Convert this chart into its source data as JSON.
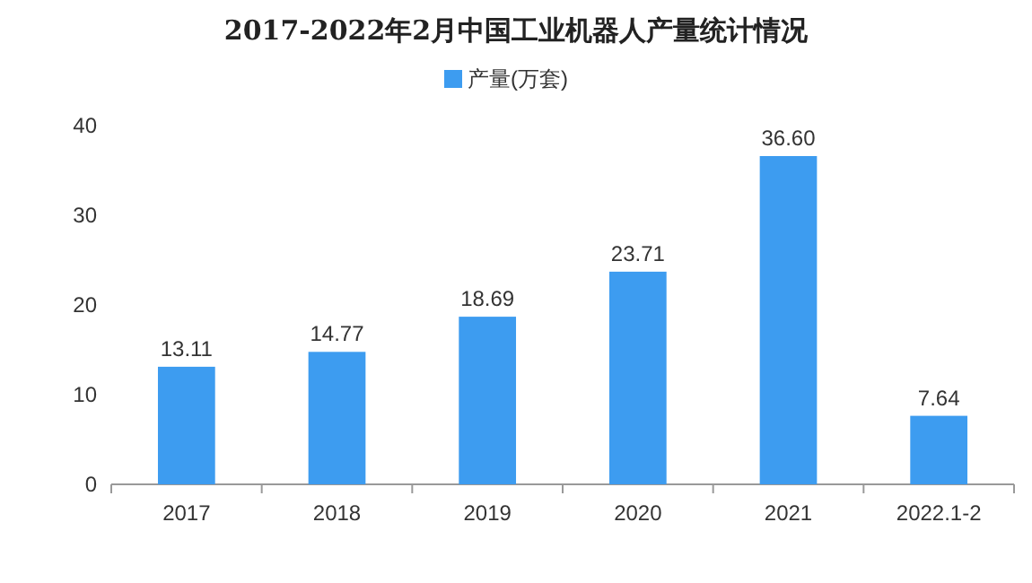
{
  "chart_data": {
    "type": "bar",
    "title": "2017-2022年2月中国工业机器人产量统计情况",
    "categories": [
      "2017",
      "2018",
      "2019",
      "2020",
      "2021",
      "2022.1-2"
    ],
    "series": [
      {
        "name": "产量(万套)",
        "color": "#3d9cf0",
        "values": [
          13.11,
          14.77,
          18.69,
          23.71,
          36.6,
          7.64
        ]
      }
    ],
    "value_labels": [
      "13.11",
      "14.77",
      "18.69",
      "23.71",
      "36.60",
      "7.64"
    ],
    "ylim": [
      0,
      40
    ],
    "yticks": [
      0,
      10,
      20,
      30,
      40
    ],
    "legend": "top"
  }
}
